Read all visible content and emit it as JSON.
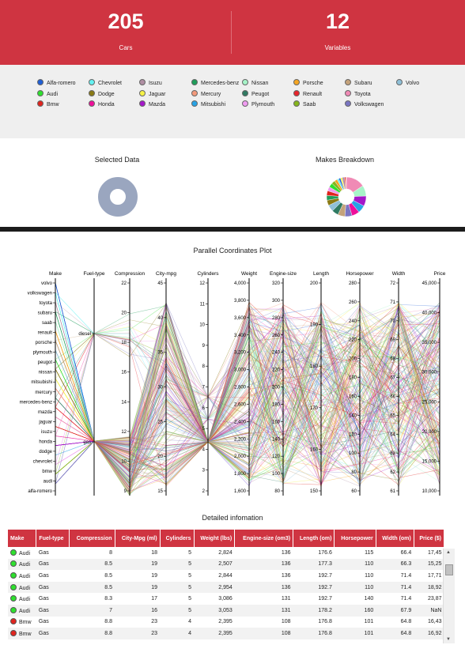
{
  "stats": [
    {
      "value": "205",
      "label": "Cars"
    },
    {
      "value": "12",
      "label": "Variables"
    }
  ],
  "legend": [
    {
      "name": "Alfa-romero",
      "color": "#1f5fd6"
    },
    {
      "name": "Chevrolet",
      "color": "#64f2f2"
    },
    {
      "name": "Isuzu",
      "color": "#b08fa3"
    },
    {
      "name": "Mercedes-benz",
      "color": "#1f9e5a"
    },
    {
      "name": "Nissan",
      "color": "#a7f4c8"
    },
    {
      "name": "Porsche",
      "color": "#f5a623"
    },
    {
      "name": "Subaru",
      "color": "#c4a27a"
    },
    {
      "name": "Volvo",
      "color": "#8fc0d8"
    },
    {
      "name": "Audi",
      "color": "#2ee02e"
    },
    {
      "name": "Dodge",
      "color": "#8a7a14"
    },
    {
      "name": "Jaguar",
      "color": "#f6f245"
    },
    {
      "name": "Mercury",
      "color": "#f39a7c"
    },
    {
      "name": "Peugot",
      "color": "#2f7a62"
    },
    {
      "name": "Renault",
      "color": "#e8242b"
    },
    {
      "name": "Toyota",
      "color": "#f08ab5"
    },
    {
      "name": "Bmw",
      "color": "#e0241e"
    },
    {
      "name": "Honda",
      "color": "#ee0f9a"
    },
    {
      "name": "Mazda",
      "color": "#a417c9"
    },
    {
      "name": "Mitsubishi",
      "color": "#27a3e6"
    },
    {
      "name": "Plymouth",
      "color": "#ef9bf0"
    },
    {
      "name": "Saab",
      "color": "#85b51c"
    },
    {
      "name": "Volkswagen",
      "color": "#7a75c2"
    }
  ],
  "selected_title": "Selected Data",
  "makes_title": "Makes Breakdown",
  "pcp_title": "Parallel Coordinates Plot",
  "detail_title": "Detailed infomation",
  "chart_data": [
    {
      "type": "pie",
      "title": "Selected Data",
      "values": [
        205
      ],
      "colors": [
        "#9aa6bf"
      ],
      "donut": true
    },
    {
      "type": "pie",
      "title": "Makes Breakdown",
      "donut": true,
      "categories": [
        "toyota",
        "nissan",
        "mazda",
        "mitsubishi",
        "honda",
        "volkswagen",
        "subaru",
        "peugot",
        "volvo",
        "dodge",
        "mercedes-benz",
        "bmw",
        "plymouth",
        "audi",
        "saab",
        "porsche",
        "chevrolet",
        "alfa-romero",
        "jaguar",
        "isuzu",
        "renault",
        "mercury"
      ],
      "values": [
        32,
        18,
        17,
        13,
        13,
        12,
        12,
        11,
        11,
        9,
        8,
        8,
        7,
        7,
        6,
        5,
        3,
        3,
        3,
        4,
        2,
        1
      ],
      "colors": [
        "#f08ab5",
        "#a7f4c8",
        "#a417c9",
        "#27a3e6",
        "#ee0f9a",
        "#7a75c2",
        "#c4a27a",
        "#2f7a62",
        "#8fc0d8",
        "#8a7a14",
        "#1f9e5a",
        "#e0241e",
        "#ef9bf0",
        "#2ee02e",
        "#85b51c",
        "#f5a623",
        "#64f2f2",
        "#1f5fd6",
        "#f6f245",
        "#b08fa3",
        "#e8242b",
        "#f39a7c"
      ]
    },
    {
      "type": "parallel-coordinates",
      "title": "Parallel Coordinates Plot",
      "axes": [
        {
          "name": "Make",
          "ticks": [
            "volvo",
            "volkswagen",
            "toyota",
            "subaru",
            "saab",
            "renault",
            "porsche",
            "plymouth",
            "peugot",
            "nissan",
            "mitsubishi",
            "mercury",
            "mercedes-benz",
            "mazda",
            "jaguar",
            "isuzu",
            "honda",
            "dodge",
            "chevrolet",
            "bmw",
            "audi",
            "alfa-romero"
          ]
        },
        {
          "name": "Fuel-type",
          "ticks": [
            "diesel",
            "gas"
          ]
        },
        {
          "name": "Compression",
          "ticks": [
            "22",
            "20",
            "18",
            "16",
            "14",
            "12",
            "10",
            "9"
          ]
        },
        {
          "name": "City-mpg",
          "ticks": [
            "45",
            "40",
            "35",
            "30",
            "25",
            "20",
            "15"
          ]
        },
        {
          "name": "Cylinders",
          "ticks": [
            "12",
            "11",
            "10",
            "9",
            "8",
            "7",
            "6",
            "5",
            "4",
            "3",
            "2"
          ]
        },
        {
          "name": "Weight",
          "ticks": [
            "4,000",
            "3,800",
            "3,600",
            "3,400",
            "3,200",
            "3,000",
            "2,800",
            "2,600",
            "2,400",
            "2,200",
            "2,000",
            "1,800",
            "1,600"
          ]
        },
        {
          "name": "Engine-size",
          "ticks": [
            "320",
            "300",
            "280",
            "260",
            "240",
            "220",
            "200",
            "180",
            "160",
            "140",
            "120",
            "100",
            "80"
          ]
        },
        {
          "name": "Length",
          "ticks": [
            "200",
            "190",
            "180",
            "170",
            "160",
            "150"
          ]
        },
        {
          "name": "Horsepower",
          "ticks": [
            "280",
            "260",
            "240",
            "220",
            "200",
            "180",
            "160",
            "140",
            "120",
            "100",
            "80",
            "60"
          ]
        },
        {
          "name": "Width",
          "ticks": [
            "72",
            "71",
            "70",
            "69",
            "68",
            "67",
            "66",
            "65",
            "64",
            "63",
            "62",
            "61"
          ]
        },
        {
          "name": "Price",
          "ticks": [
            "45,000",
            "40,000",
            "35,000",
            "30,000",
            "25,000",
            "20,000",
            "15,000",
            "10,000"
          ]
        }
      ]
    }
  ],
  "table": {
    "headers": [
      "Make",
      "Fuel-type",
      "Compression",
      "City-Mpg (ml)",
      "Cylinders",
      "Weight (lbs)",
      "Engine-size (om3)",
      "Length (om)",
      "Horsepower",
      "Width (om)",
      "Price ($)"
    ],
    "rows": [
      {
        "make": "Audi",
        "color": "#2ee02e",
        "cells": [
          "Gas",
          "8",
          "18",
          "5",
          "2,824",
          "136",
          "176.6",
          "115",
          "66.4",
          "17,45"
        ]
      },
      {
        "make": "Audi",
        "color": "#2ee02e",
        "cells": [
          "Gas",
          "8.5",
          "19",
          "5",
          "2,507",
          "136",
          "177.3",
          "110",
          "66.3",
          "15,25"
        ]
      },
      {
        "make": "Audi",
        "color": "#2ee02e",
        "cells": [
          "Gas",
          "8.5",
          "19",
          "5",
          "2,844",
          "136",
          "192.7",
          "110",
          "71.4",
          "17,71"
        ]
      },
      {
        "make": "Audi",
        "color": "#2ee02e",
        "cells": [
          "Gas",
          "8.5",
          "19",
          "5",
          "2,954",
          "136",
          "192.7",
          "110",
          "71.4",
          "18,92"
        ]
      },
      {
        "make": "Audi",
        "color": "#2ee02e",
        "cells": [
          "Gas",
          "8.3",
          "17",
          "5",
          "3,086",
          "131",
          "192.7",
          "140",
          "71.4",
          "23,87"
        ]
      },
      {
        "make": "Audi",
        "color": "#2ee02e",
        "cells": [
          "Gas",
          "7",
          "16",
          "5",
          "3,053",
          "131",
          "178.2",
          "160",
          "67.9",
          "NaN"
        ]
      },
      {
        "make": "Bmw",
        "color": "#e0241e",
        "cells": [
          "Gas",
          "8.8",
          "23",
          "4",
          "2,395",
          "108",
          "176.8",
          "101",
          "64.8",
          "16,43"
        ]
      },
      {
        "make": "Bmw",
        "color": "#e0241e",
        "cells": [
          "Gas",
          "8.8",
          "23",
          "4",
          "2,395",
          "108",
          "176.8",
          "101",
          "64.8",
          "16,92"
        ]
      }
    ]
  }
}
